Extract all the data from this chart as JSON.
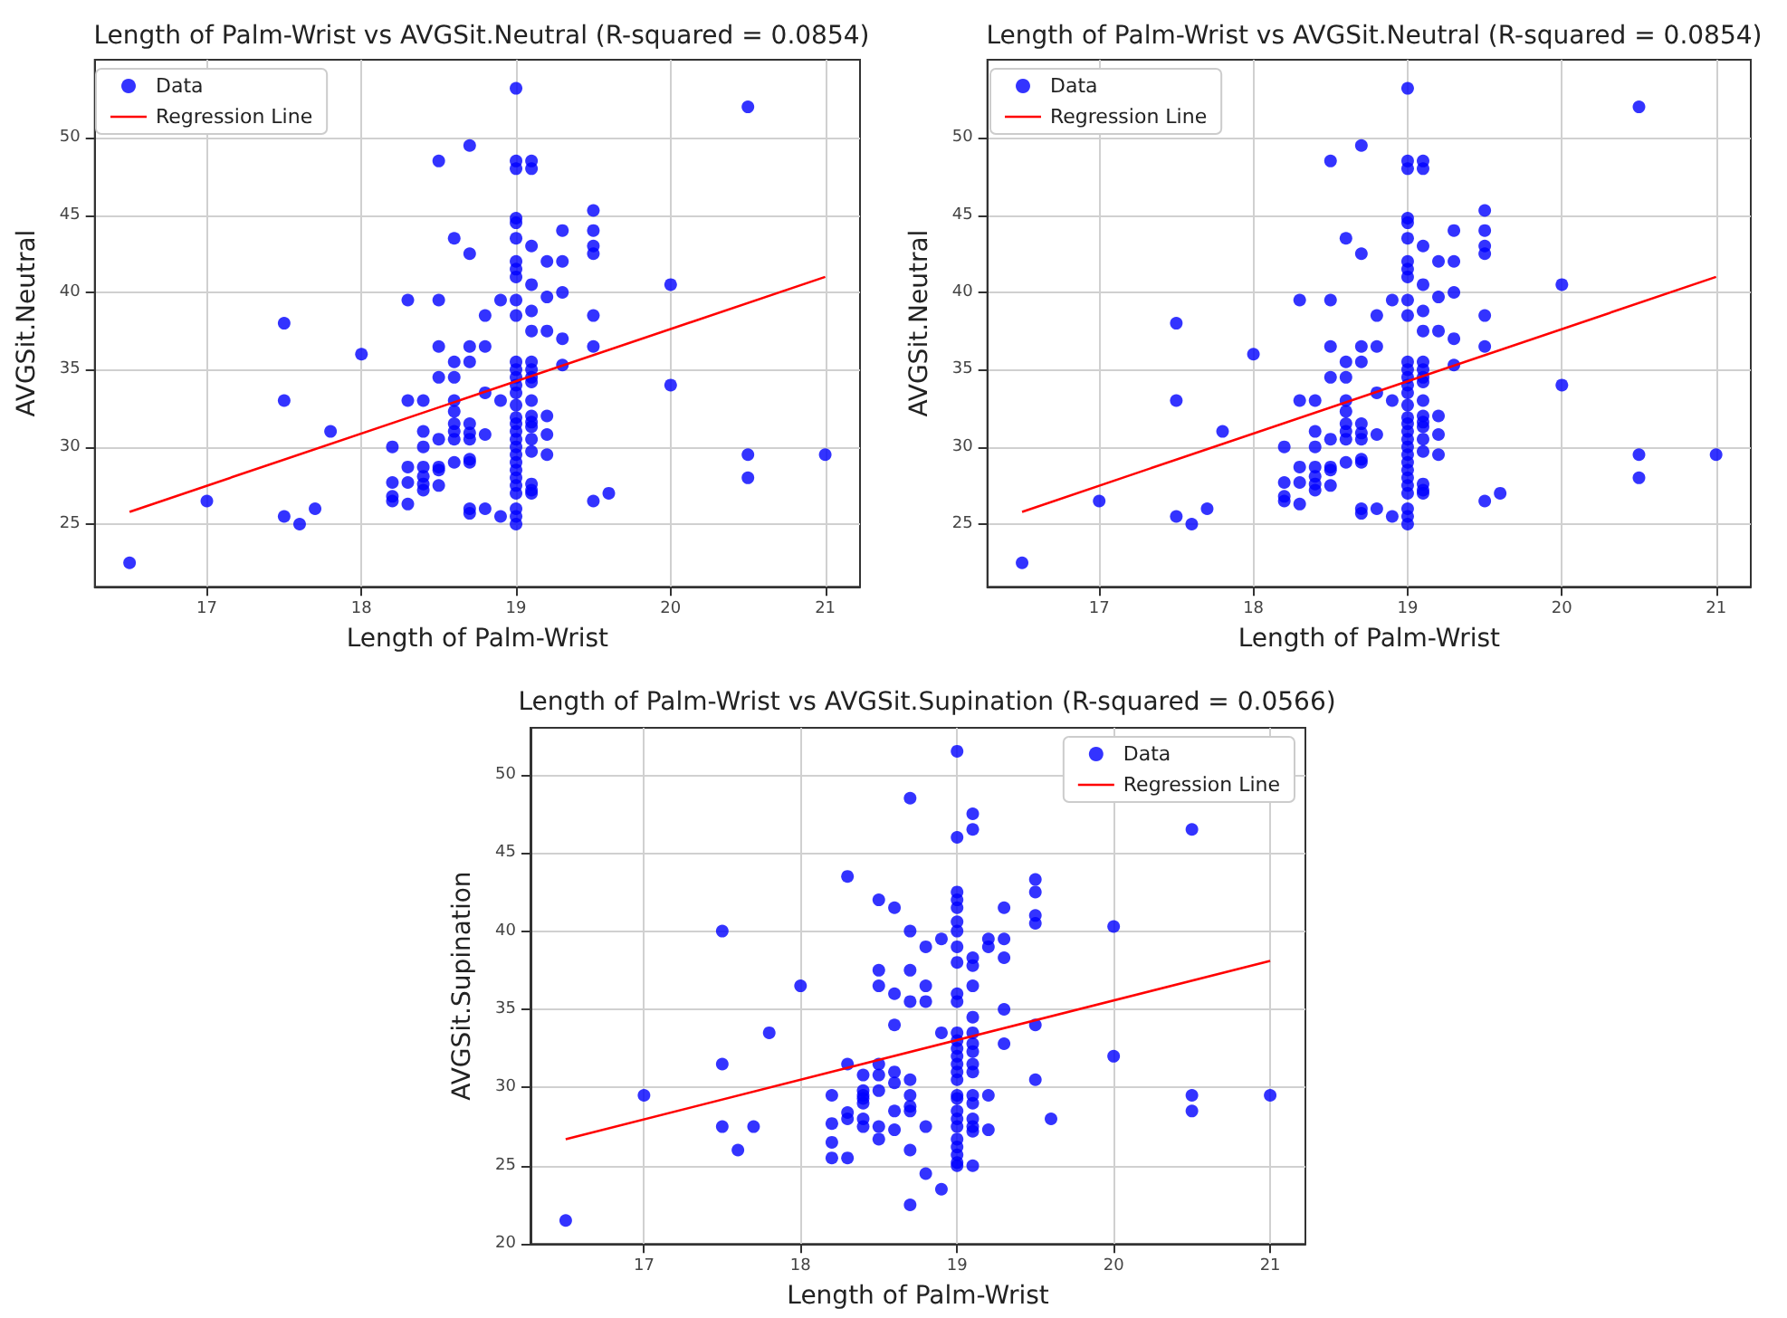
{
  "chart_data": [
    {
      "type": "scatter",
      "title": "Length of Palm-Wrist vs AVGSit.Neutral (R-squared = 0.0854)",
      "xlabel": "Length of Palm-Wrist",
      "ylabel": "AVGSit.Neutral",
      "xlim": [
        16.275,
        21.225
      ],
      "xticks": [
        17,
        18,
        19,
        20,
        21
      ],
      "ylim": [
        20.95,
        55.05
      ],
      "yticks": [
        25,
        30,
        35,
        40,
        45,
        50
      ],
      "grid": true,
      "legend": "top left",
      "series": [
        {
          "name": "Data",
          "type": "scatter",
          "marker": "circle",
          "color": "#0000ff",
          "x": [
            16.5,
            17,
            17.5,
            17.5,
            17.5,
            17.6,
            17.7,
            17.8,
            18,
            18.2,
            18.2,
            18.2,
            18.2,
            18.3,
            18.3,
            18.3,
            18.3,
            18.3,
            18.4,
            18.4,
            18.4,
            18.4,
            18.4,
            18.4,
            18.4,
            18.5,
            18.5,
            18.5,
            18.5,
            18.5,
            18.5,
            18.5,
            18.5,
            18.6,
            18.6,
            18.6,
            18.6,
            18.6,
            18.6,
            18.6,
            18.6,
            18.6,
            18.7,
            18.7,
            18.7,
            18.7,
            18.7,
            18.7,
            18.7,
            18.7,
            18.7,
            18.7,
            18.7,
            18.8,
            18.8,
            18.8,
            18.8,
            18.8,
            18.9,
            18.9,
            18.9,
            19,
            19,
            19,
            19,
            19,
            19,
            19,
            19,
            19,
            19,
            19,
            19,
            19,
            19,
            19,
            19,
            19,
            19,
            19,
            19,
            19,
            19,
            19,
            19,
            19,
            19,
            19,
            19,
            19,
            19,
            19,
            19.1,
            19.1,
            19.1,
            19.1,
            19.1,
            19.1,
            19.1,
            19.1,
            19.1,
            19.1,
            19.1,
            19.1,
            19.1,
            19.1,
            19.1,
            19.1,
            19.1,
            19.1,
            19.1,
            19.2,
            19.2,
            19.2,
            19.2,
            19.2,
            19.2,
            19.3,
            19.3,
            19.3,
            19.3,
            19.3,
            19.5,
            19.5,
            19.5,
            19.5,
            19.5,
            19.5,
            19.5,
            19.6,
            20,
            20,
            20.5,
            20.5,
            20.5,
            21
          ],
          "values": [
            22.5,
            26.5,
            38,
            33,
            25.5,
            25,
            26,
            31,
            36,
            30,
            27.7,
            26.8,
            26.5,
            39.5,
            33,
            28.7,
            27.7,
            26.3,
            33,
            31,
            30,
            28.7,
            28.1,
            27.6,
            27.2,
            48.5,
            39.5,
            36.5,
            34.5,
            30.5,
            28.7,
            28.5,
            27.5,
            43.5,
            35.5,
            34.5,
            33,
            32.3,
            31.5,
            31,
            30.5,
            29,
            49.5,
            42.5,
            36.5,
            35.5,
            31.5,
            30.9,
            30.5,
            29.2,
            29,
            26,
            25.7,
            38.5,
            36.5,
            33.5,
            30.8,
            26,
            39.5,
            33,
            25.5,
            53.2,
            48.5,
            48,
            44.8,
            44.5,
            43.5,
            42,
            41.5,
            41,
            39.5,
            38.5,
            35.5,
            35,
            34.5,
            34,
            33.5,
            32.7,
            31.9,
            31.5,
            31,
            30.5,
            30,
            29.5,
            29,
            28.5,
            28,
            27.5,
            27,
            26,
            25.5,
            25,
            48.5,
            48,
            43,
            40.5,
            38.8,
            37.5,
            35.5,
            35,
            34.5,
            34.2,
            33,
            32,
            31.6,
            31.3,
            30.5,
            29.7,
            27.6,
            27.2,
            27,
            42,
            39.7,
            37.5,
            32,
            30.8,
            29.5,
            44,
            42,
            40,
            37,
            35.3,
            45.3,
            44,
            43,
            42.5,
            38.5,
            36.5,
            26.5,
            27,
            40.5,
            34,
            52,
            29.5,
            28,
            29.5
          ]
        },
        {
          "name": "Regression Line",
          "type": "line",
          "marker": "none",
          "line_style": "solid",
          "color": "#ff0000",
          "x": [
            16.5,
            21
          ],
          "values": [
            25.8,
            41.0
          ]
        }
      ]
    },
    {
      "type": "scatter",
      "title": "Length of Palm-Wrist vs AVGSit.Neutral (R-squared = 0.0854)",
      "xlabel": "Length of Palm-Wrist",
      "ylabel": "AVGSit.Neutral",
      "xlim": [
        16.275,
        21.225
      ],
      "xticks": [
        17,
        18,
        19,
        20,
        21
      ],
      "ylim": [
        20.95,
        55.05
      ],
      "yticks": [
        25,
        30,
        35,
        40,
        45,
        50
      ],
      "grid": true,
      "legend": "top left",
      "series": [
        {
          "name": "Data",
          "type": "scatter",
          "marker": "circle",
          "color": "#0000ff",
          "x": [
            16.5,
            17,
            17.5,
            17.5,
            17.5,
            17.6,
            17.7,
            17.8,
            18,
            18.2,
            18.2,
            18.2,
            18.2,
            18.3,
            18.3,
            18.3,
            18.3,
            18.3,
            18.4,
            18.4,
            18.4,
            18.4,
            18.4,
            18.4,
            18.4,
            18.5,
            18.5,
            18.5,
            18.5,
            18.5,
            18.5,
            18.5,
            18.5,
            18.6,
            18.6,
            18.6,
            18.6,
            18.6,
            18.6,
            18.6,
            18.6,
            18.6,
            18.7,
            18.7,
            18.7,
            18.7,
            18.7,
            18.7,
            18.7,
            18.7,
            18.7,
            18.7,
            18.7,
            18.8,
            18.8,
            18.8,
            18.8,
            18.8,
            18.9,
            18.9,
            18.9,
            19,
            19,
            19,
            19,
            19,
            19,
            19,
            19,
            19,
            19,
            19,
            19,
            19,
            19,
            19,
            19,
            19,
            19,
            19,
            19,
            19,
            19,
            19,
            19,
            19,
            19,
            19,
            19,
            19,
            19,
            19,
            19.1,
            19.1,
            19.1,
            19.1,
            19.1,
            19.1,
            19.1,
            19.1,
            19.1,
            19.1,
            19.1,
            19.1,
            19.1,
            19.1,
            19.1,
            19.1,
            19.1,
            19.1,
            19.1,
            19.2,
            19.2,
            19.2,
            19.2,
            19.2,
            19.2,
            19.3,
            19.3,
            19.3,
            19.3,
            19.3,
            19.5,
            19.5,
            19.5,
            19.5,
            19.5,
            19.5,
            19.5,
            19.6,
            20,
            20,
            20.5,
            20.5,
            20.5,
            21
          ],
          "values": [
            22.5,
            26.5,
            38,
            33,
            25.5,
            25,
            26,
            31,
            36,
            30,
            27.7,
            26.8,
            26.5,
            39.5,
            33,
            28.7,
            27.7,
            26.3,
            33,
            31,
            30,
            28.7,
            28.1,
            27.6,
            27.2,
            48.5,
            39.5,
            36.5,
            34.5,
            30.5,
            28.7,
            28.5,
            27.5,
            43.5,
            35.5,
            34.5,
            33,
            32.3,
            31.5,
            31,
            30.5,
            29,
            49.5,
            42.5,
            36.5,
            35.5,
            31.5,
            30.9,
            30.5,
            29.2,
            29,
            26,
            25.7,
            38.5,
            36.5,
            33.5,
            30.8,
            26,
            39.5,
            33,
            25.5,
            53.2,
            48.5,
            48,
            44.8,
            44.5,
            43.5,
            42,
            41.5,
            41,
            39.5,
            38.5,
            35.5,
            35,
            34.5,
            34,
            33.5,
            32.7,
            31.9,
            31.5,
            31,
            30.5,
            30,
            29.5,
            29,
            28.5,
            28,
            27.5,
            27,
            26,
            25.5,
            25,
            48.5,
            48,
            43,
            40.5,
            38.8,
            37.5,
            35.5,
            35,
            34.5,
            34.2,
            33,
            32,
            31.6,
            31.3,
            30.5,
            29.7,
            27.6,
            27.2,
            27,
            42,
            39.7,
            37.5,
            32,
            30.8,
            29.5,
            44,
            42,
            40,
            37,
            35.3,
            45.3,
            44,
            43,
            42.5,
            38.5,
            36.5,
            26.5,
            27,
            40.5,
            34,
            52,
            29.5,
            28,
            29.5
          ]
        },
        {
          "name": "Regression Line",
          "type": "line",
          "marker": "none",
          "line_style": "solid",
          "color": "#ff0000",
          "x": [
            16.5,
            21
          ],
          "values": [
            25.8,
            41.0
          ]
        }
      ]
    },
    {
      "type": "scatter",
      "title": "Length of Palm-Wrist vs AVGSit.Supination (R-squared = 0.0566)",
      "xlabel": "Length of Palm-Wrist",
      "ylabel": "AVGSit.Supination",
      "xlim": [
        16.275,
        21.225
      ],
      "xticks": [
        17,
        18,
        19,
        20,
        21
      ],
      "ylim": [
        20,
        53
      ],
      "yticks": [
        20,
        25,
        30,
        35,
        40,
        45,
        50
      ],
      "grid": true,
      "legend": "top right",
      "series": [
        {
          "name": "Data",
          "type": "scatter",
          "marker": "circle",
          "color": "#0000ff",
          "x": [
            16.5,
            17,
            17.5,
            17.5,
            17.5,
            17.6,
            17.7,
            17.8,
            18,
            18.2,
            18.2,
            18.2,
            18.2,
            18.3,
            18.3,
            18.3,
            18.3,
            18.3,
            18.4,
            18.4,
            18.4,
            18.4,
            18.4,
            18.4,
            18.4,
            18.5,
            18.5,
            18.5,
            18.5,
            18.5,
            18.5,
            18.5,
            18.5,
            18.6,
            18.6,
            18.6,
            18.6,
            18.6,
            18.6,
            18.6,
            18.7,
            18.7,
            18.7,
            18.7,
            18.7,
            18.7,
            18.7,
            18.7,
            18.7,
            18.7,
            18.8,
            18.8,
            18.8,
            18.8,
            18.8,
            18.9,
            18.9,
            18.9,
            19,
            19,
            19,
            19,
            19,
            19,
            19,
            19,
            19,
            19,
            19,
            19,
            19,
            19,
            19,
            19,
            19,
            19,
            19,
            19,
            19,
            19,
            19,
            19,
            19,
            19,
            19,
            19,
            19.1,
            19.1,
            19.1,
            19.1,
            19.1,
            19.1,
            19.1,
            19.1,
            19.1,
            19.1,
            19.1,
            19.1,
            19.1,
            19.1,
            19.1,
            19.1,
            19.1,
            19.2,
            19.2,
            19.2,
            19.2,
            19.3,
            19.3,
            19.3,
            19.3,
            19.3,
            19.5,
            19.5,
            19.5,
            19.5,
            19.5,
            19.5,
            19.6,
            20,
            20,
            20.5,
            20.5,
            20.5,
            21
          ],
          "values": [
            21.5,
            29.5,
            40,
            31.5,
            27.5,
            26,
            27.5,
            33.5,
            36.5,
            29.5,
            27.7,
            26.5,
            25.5,
            43.5,
            31.5,
            28.4,
            28,
            25.5,
            30.8,
            29.8,
            29.5,
            29.3,
            29,
            28,
            27.5,
            42,
            37.5,
            36.5,
            31.5,
            30.8,
            29.8,
            27.5,
            26.7,
            41.5,
            36,
            34,
            31,
            30.3,
            28.5,
            27.3,
            48.5,
            40,
            37.5,
            35.5,
            30.5,
            29.5,
            28.8,
            28.5,
            26,
            22.5,
            39,
            36.5,
            35.5,
            27.5,
            24.5,
            39.5,
            33.5,
            23.5,
            51.5,
            46,
            42.5,
            42,
            41.5,
            40.6,
            40,
            39,
            38,
            36,
            35.5,
            33.5,
            33,
            32.5,
            32,
            31.5,
            31,
            30.5,
            29.5,
            29.3,
            28.5,
            28,
            27.5,
            26.7,
            26.2,
            25.7,
            25.2,
            25,
            47.5,
            46.5,
            38.3,
            37.8,
            36.5,
            34.5,
            33.5,
            32.8,
            32.3,
            31.5,
            31,
            29.5,
            29,
            28,
            27.5,
            27.2,
            25,
            39.5,
            39,
            29.5,
            27.3,
            41.5,
            39.5,
            38.3,
            35,
            32.8,
            43.3,
            42.5,
            41,
            40.5,
            34,
            30.5,
            28,
            40.3,
            32,
            46.5,
            29.5,
            28.5,
            29.5
          ]
        },
        {
          "name": "Regression Line",
          "type": "line",
          "marker": "none",
          "line_style": "solid",
          "color": "#ff0000",
          "x": [
            16.5,
            21
          ],
          "values": [
            26.7,
            38.1
          ]
        }
      ]
    }
  ]
}
